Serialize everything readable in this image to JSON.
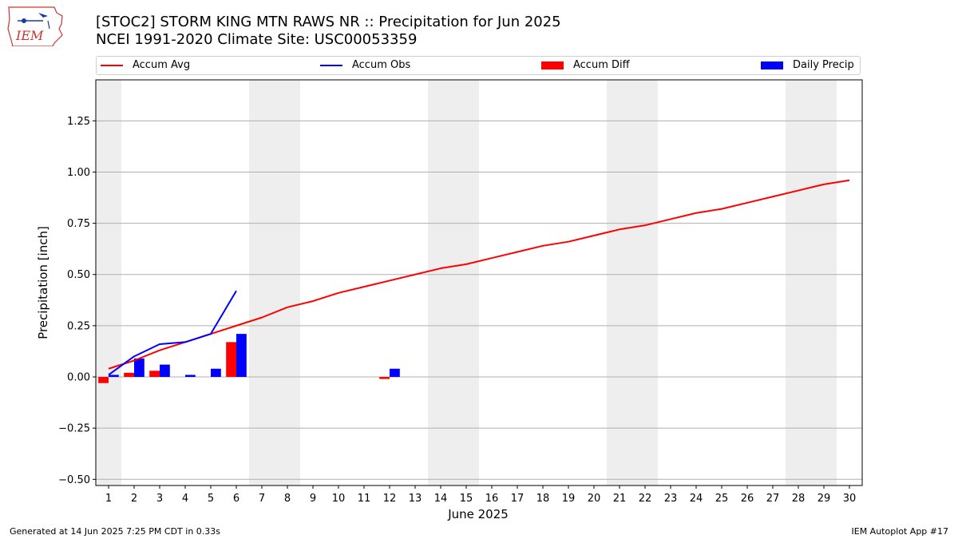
{
  "header": {
    "title_line1": "[STOC2] STORM KING MTN RAWS NR :: Precipitation for Jun 2025",
    "title_line2": "NCEI 1991-2020 Climate Site: USC00053359",
    "logo_text": "IEM"
  },
  "footer": {
    "left": "Generated at 14 Jun 2025 7:25 PM CDT in 0.33s",
    "right": "IEM Autoplot App #17"
  },
  "colors": {
    "accum_avg": "#ff0000",
    "accum_obs": "#0000ff",
    "accum_diff": "#ff0000",
    "daily_precip": "#0000ff",
    "weekend_shade": "#eeeeee",
    "grid": "#b0b0b0"
  },
  "legend": [
    {
      "label": "Accum Avg",
      "kind": "line",
      "color": "#ff0000"
    },
    {
      "label": "Accum Obs",
      "kind": "line",
      "color": "#0000ff"
    },
    {
      "label": "Accum Diff",
      "kind": "patch",
      "color": "#ff0000"
    },
    {
      "label": "Daily Precip",
      "kind": "patch",
      "color": "#0000ff"
    }
  ],
  "chart_data": {
    "type": "bar",
    "title": "[STOC2] STORM KING MTN RAWS NR :: Precipitation for Jun 2025",
    "subtitle": "NCEI 1991-2020 Climate Site: USC00053359",
    "xlabel": "June 2025",
    "ylabel": "Precipitation [inch]",
    "xlim": [
      0.5,
      30.5
    ],
    "ylim": [
      -0.53,
      1.45
    ],
    "yticks": [
      -0.5,
      -0.25,
      0.0,
      0.25,
      0.5,
      0.75,
      1.0,
      1.25
    ],
    "ytick_labels": [
      "−0.50",
      "−0.25",
      "0.00",
      "0.25",
      "0.50",
      "0.75",
      "1.00",
      "1.25"
    ],
    "x": [
      1,
      2,
      3,
      4,
      5,
      6,
      7,
      8,
      9,
      10,
      11,
      12,
      13,
      14,
      15,
      16,
      17,
      18,
      19,
      20,
      21,
      22,
      23,
      24,
      25,
      26,
      27,
      28,
      29,
      30
    ],
    "grid": "horizontal",
    "legend_position": "top",
    "weekend_days": [
      1,
      7,
      8,
      14,
      15,
      21,
      22,
      28,
      29
    ],
    "series": [
      {
        "name": "Accum Avg",
        "kind": "line",
        "x": [
          1,
          2,
          3,
          4,
          5,
          6,
          7,
          8,
          9,
          10,
          11,
          12,
          13,
          14,
          15,
          16,
          17,
          18,
          19,
          20,
          21,
          22,
          23,
          24,
          25,
          26,
          27,
          28,
          29,
          30
        ],
        "values": [
          0.04,
          0.08,
          0.13,
          0.17,
          0.21,
          0.25,
          0.29,
          0.34,
          0.37,
          0.41,
          0.44,
          0.47,
          0.5,
          0.53,
          0.55,
          0.58,
          0.61,
          0.64,
          0.66,
          0.69,
          0.72,
          0.74,
          0.77,
          0.8,
          0.82,
          0.85,
          0.88,
          0.91,
          0.94,
          0.96
        ]
      },
      {
        "name": "Accum Obs",
        "kind": "line",
        "x": [
          1,
          2,
          3,
          4,
          5,
          6
        ],
        "values": [
          0.01,
          0.1,
          0.16,
          0.17,
          0.21,
          0.42
        ]
      },
      {
        "name": "Accum Diff",
        "kind": "bar",
        "x": [
          1,
          2,
          3,
          4,
          5,
          6,
          12
        ],
        "values": [
          -0.03,
          0.02,
          0.03,
          0.0,
          0.0,
          0.17,
          -0.01
        ]
      },
      {
        "name": "Daily Precip",
        "kind": "bar",
        "x": [
          1,
          2,
          3,
          4,
          5,
          6,
          12
        ],
        "values": [
          0.01,
          0.09,
          0.06,
          0.01,
          0.04,
          0.21,
          0.04
        ]
      }
    ]
  }
}
